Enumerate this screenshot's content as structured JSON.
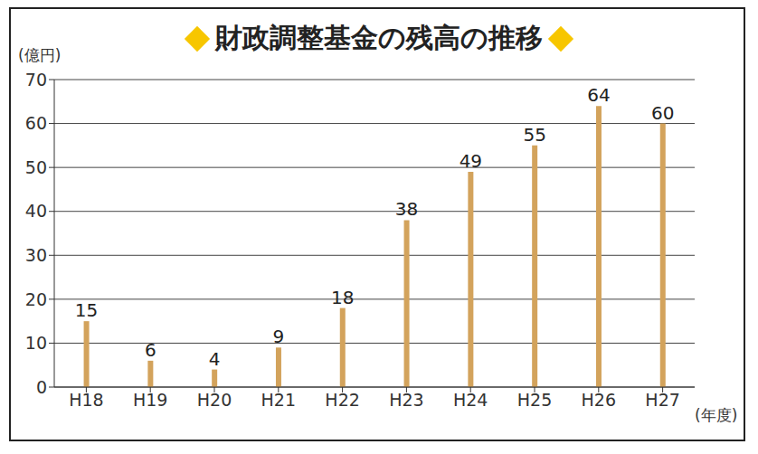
{
  "chart_data": {
    "type": "bar",
    "title": "財政調整基金の残高の推移",
    "y_label": "(億円)",
    "x_label": "(年度)",
    "categories": [
      "H18",
      "H19",
      "H20",
      "H21",
      "H22",
      "H23",
      "H24",
      "H25",
      "H26",
      "H27"
    ],
    "values": [
      15,
      6,
      4,
      9,
      18,
      38,
      49,
      55,
      64,
      60
    ],
    "color": "#d3a35c",
    "ylim": [
      0,
      70
    ],
    "yticks": [
      0,
      10,
      20,
      30,
      40,
      50,
      60,
      70
    ],
    "grid": true,
    "data_labels": true
  }
}
